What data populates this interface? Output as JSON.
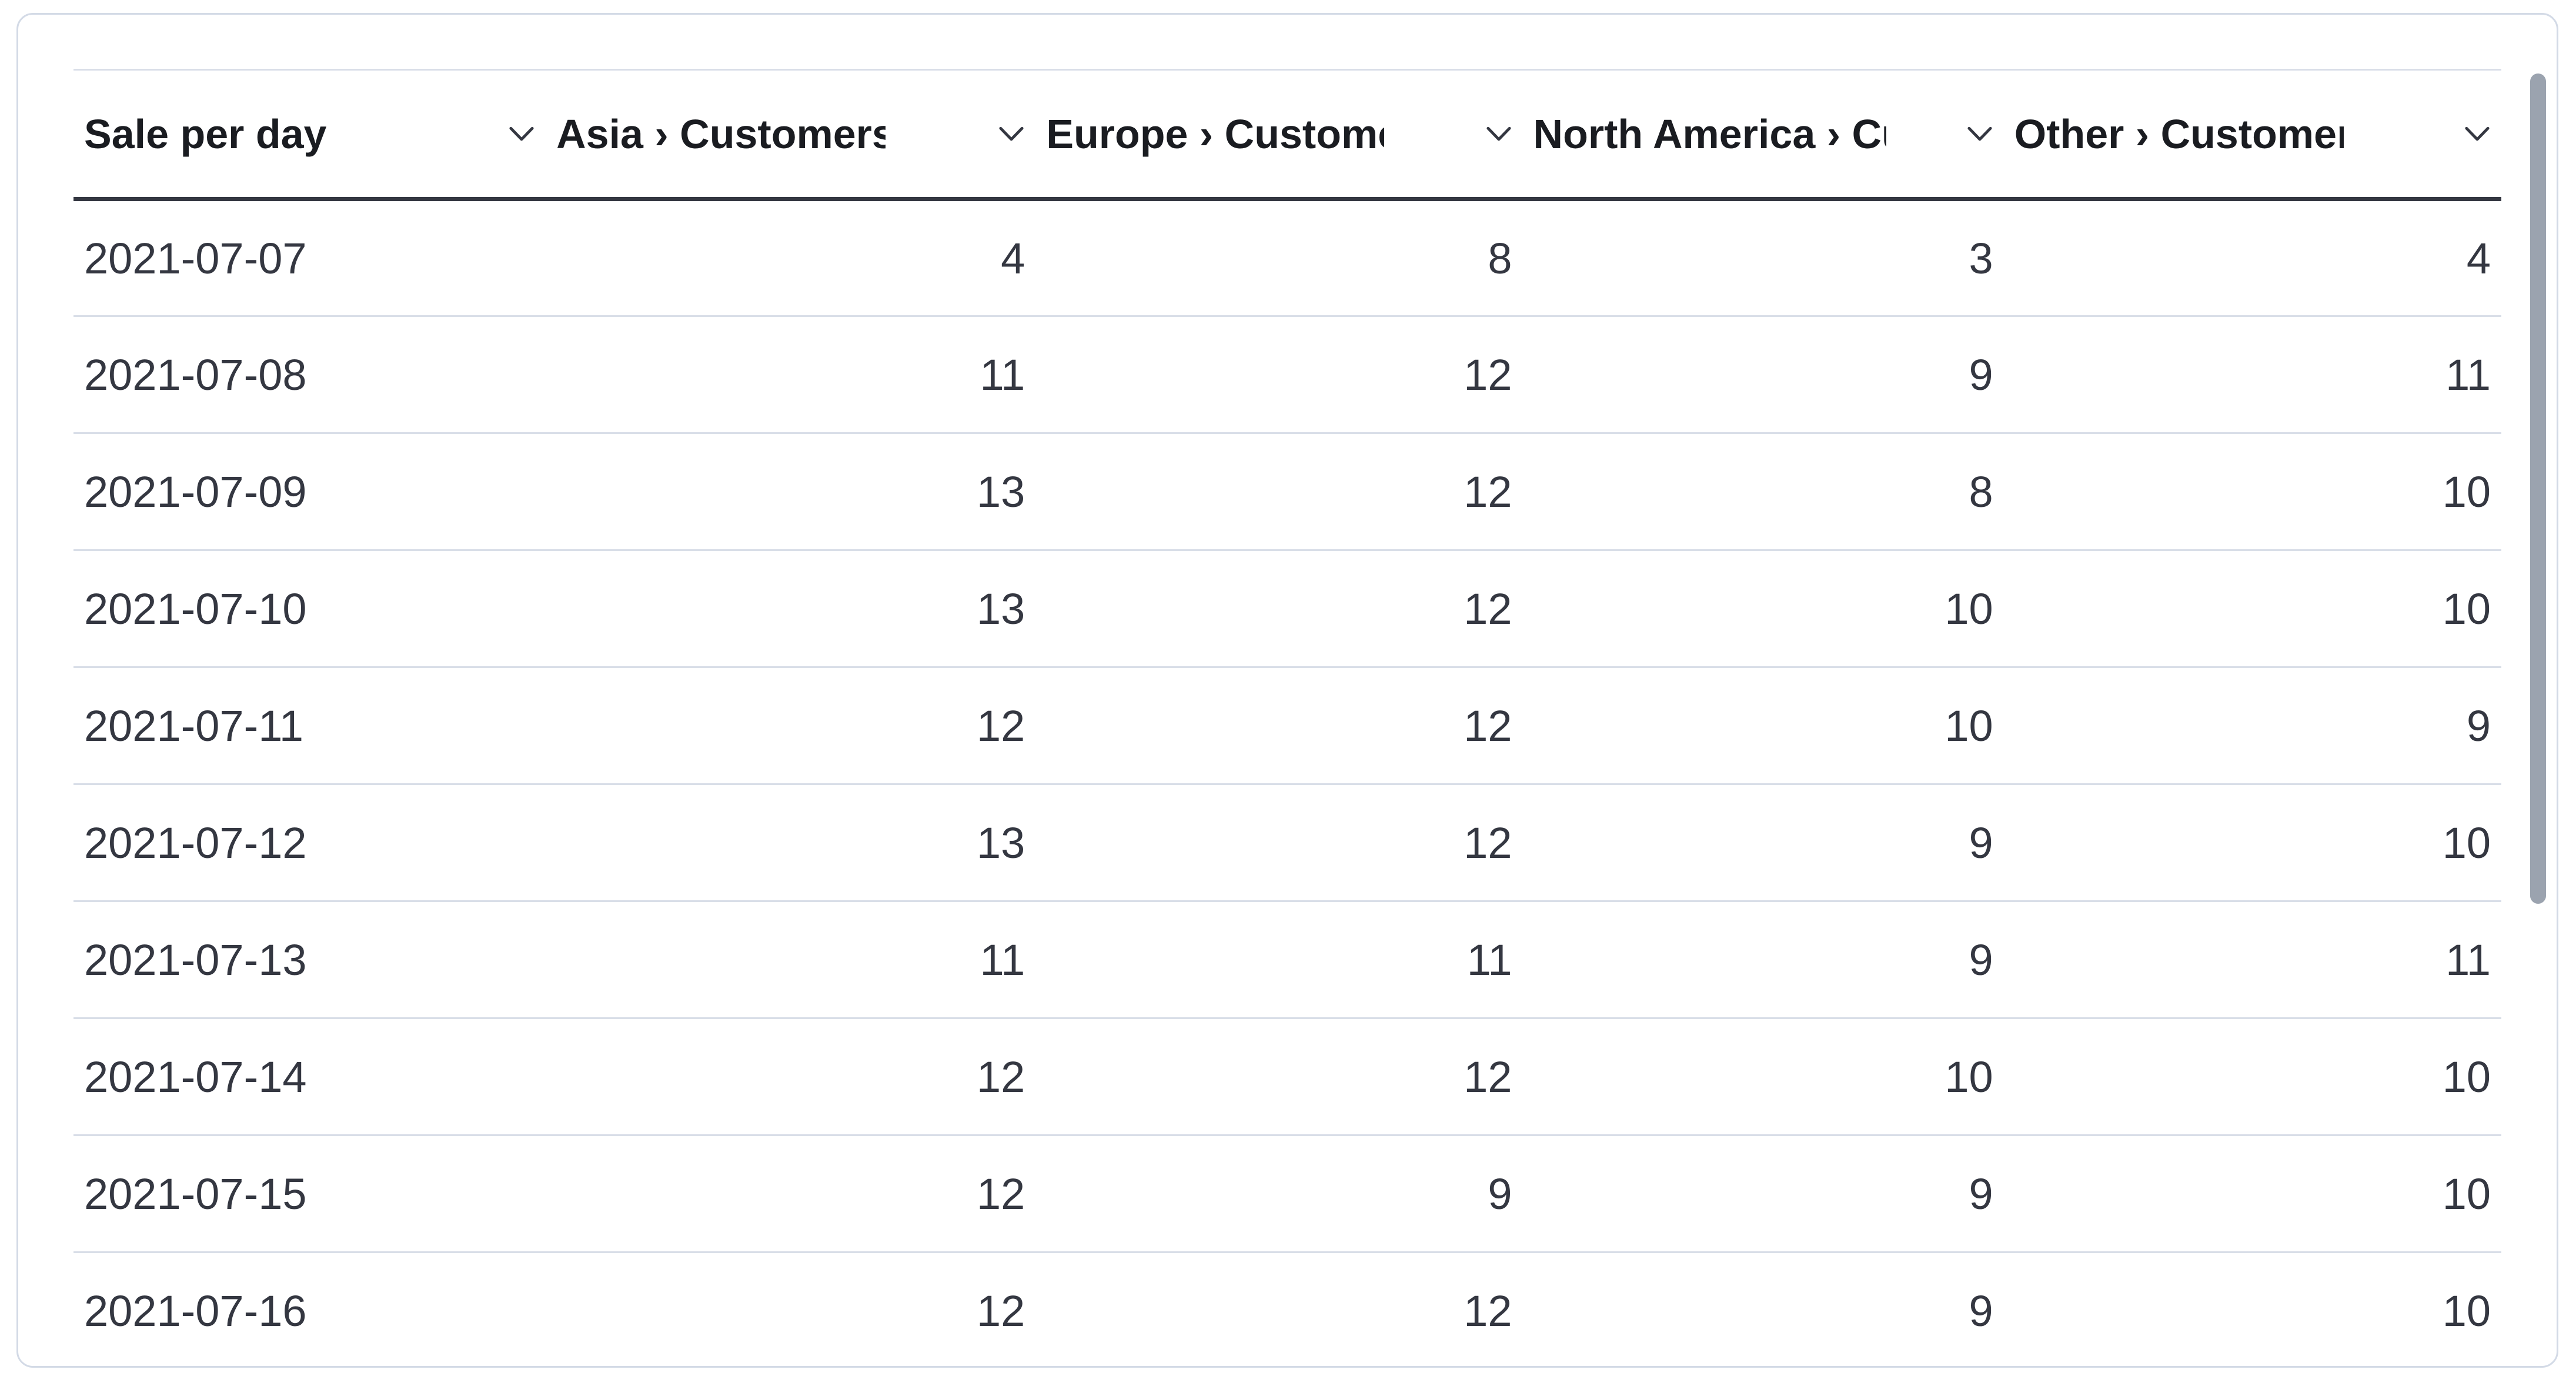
{
  "table": {
    "columns": [
      {
        "label": "Sale per day",
        "align": "left"
      },
      {
        "label": "Asia › Customers",
        "align": "right"
      },
      {
        "label": "Europe › Customers",
        "align": "right"
      },
      {
        "label": "North America › Customers",
        "align": "right"
      },
      {
        "label": "Other › Customers",
        "align": "right"
      }
    ],
    "rows": [
      [
        "2021-07-07",
        4,
        8,
        3,
        4
      ],
      [
        "2021-07-08",
        11,
        12,
        9,
        11
      ],
      [
        "2021-07-09",
        13,
        12,
        8,
        10
      ],
      [
        "2021-07-10",
        13,
        12,
        10,
        10
      ],
      [
        "2021-07-11",
        12,
        12,
        10,
        9
      ],
      [
        "2021-07-12",
        13,
        12,
        9,
        10
      ],
      [
        "2021-07-13",
        11,
        11,
        9,
        11
      ],
      [
        "2021-07-14",
        12,
        12,
        10,
        10
      ],
      [
        "2021-07-15",
        12,
        9,
        9,
        10
      ],
      [
        "2021-07-16",
        12,
        12,
        9,
        10
      ]
    ]
  },
  "icons": {
    "sort_icon": "chevron-down-icon"
  },
  "colors": {
    "header_text": "#1a1c21",
    "cell_text": "#343741",
    "row_divider": "#d9dee8",
    "header_underline": "#343741",
    "card_border": "#d3dae6",
    "scrollbar_thumb": "#9ba3af",
    "background": "#ffffff"
  }
}
